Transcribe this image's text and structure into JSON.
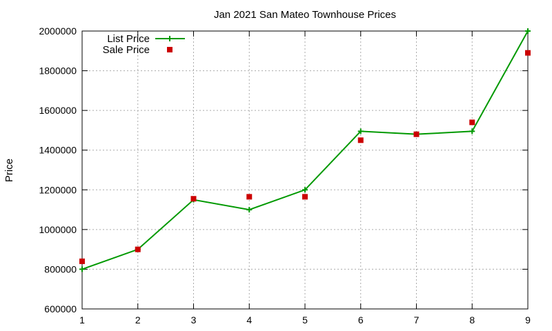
{
  "chart_data": {
    "type": "line",
    "title": "Jan 2021 San Mateo Townhouse Prices",
    "xlabel": "",
    "ylabel": "Price",
    "x": [
      1,
      2,
      3,
      4,
      5,
      6,
      7,
      8,
      9
    ],
    "xlim": [
      1,
      9
    ],
    "ylim": [
      600000,
      2000000
    ],
    "x_ticks": [
      1,
      2,
      3,
      4,
      5,
      6,
      7,
      8,
      9
    ],
    "y_ticks": [
      600000,
      800000,
      1000000,
      1200000,
      1400000,
      1600000,
      1800000,
      2000000
    ],
    "grid": true,
    "legend_position": "top-left",
    "series": [
      {
        "name": "List Price",
        "style": "line-with-plus-markers",
        "color": "#009900",
        "values": [
          800000,
          900000,
          1150000,
          1100000,
          1200000,
          1495000,
          1480000,
          1495000,
          2000000
        ]
      },
      {
        "name": "Sale Price",
        "style": "square-markers",
        "color": "#cc0000",
        "values": [
          840000,
          900000,
          1155000,
          1165000,
          1165000,
          1450000,
          1480000,
          1540000,
          1890000
        ]
      }
    ]
  }
}
